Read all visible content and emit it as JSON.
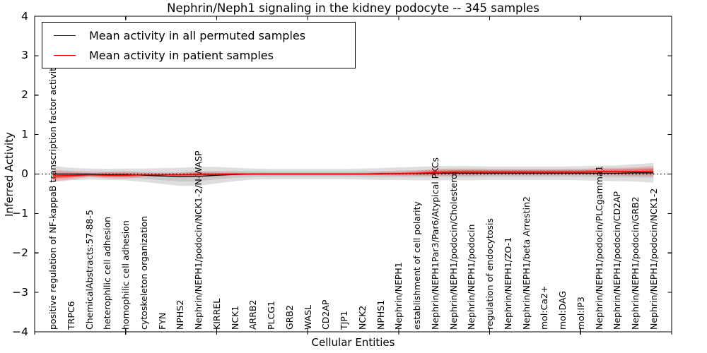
{
  "figure": {
    "title": "Nephrin/Neph1 signaling in the kidney podocyte -- 345 samples"
  },
  "axes": {
    "xlabel": "Cellular Entities",
    "ylabel": "Inferred Activity",
    "ytick_labels": [
      "4",
      "3",
      "2",
      "1",
      "0",
      "−1",
      "−2",
      "−3",
      "−4"
    ],
    "ylim": [
      -4,
      4
    ]
  },
  "legend": {
    "items": [
      {
        "label": "Mean activity in all permuted samples",
        "color": "#000000"
      },
      {
        "label": "Mean activity in patient samples",
        "color": "#ff0000"
      }
    ]
  },
  "chart_data": {
    "type": "line",
    "title": "Nephrin/Neph1 signaling in the kidney podocyte -- 345 samples",
    "xlabel": "Cellular Entities",
    "ylabel": "Inferred Activity",
    "ylim": [
      -4,
      4
    ],
    "yticks": [
      4,
      3,
      2,
      1,
      0,
      -1,
      -2,
      -3,
      -4
    ],
    "x_axis_numeric_tick_positions": [
      0,
      5,
      10,
      15,
      20,
      25,
      30,
      35
    ],
    "grid": false,
    "legend_position": "upper-left",
    "zero_reference_line": {
      "y": 0,
      "style": "dotted",
      "color": "#000000"
    },
    "categories": [
      "positive regulation of NF-kappaB transcription factor activity",
      "TRPC6",
      "ChemicalAbstracts:57-88-5",
      "heterophilic cell adhesion",
      "homophilic cell adhesion",
      "cytoskeleton organization",
      "FYN",
      "NPHS2",
      "Nephrin/NEPH1/podocin/NCK1-2/N-WASP",
      "KIRREL",
      "NCK1",
      "ARRB2",
      "PLCG1",
      "GRB2",
      "WASL",
      "CD2AP",
      "TJP1",
      "NCK2",
      "NPHS1",
      "Nephrin/NEPH1",
      "establishment of cell polarity",
      "Nephrin/NEPH1Par3/Par6/Atypical PKCs",
      "Nephrin/NEPH1/podocin/Cholesterol",
      "Nephrin/NEPH1/podocin",
      "regulation of endocytosis",
      "Nephrin/NEPH1/ZO-1",
      "Nephrin/NEPH1/beta Arrestin2",
      "mol:Ca2+",
      "mol:DAG",
      "mol:IP3",
      "Nephrin/NEPH1/podocin/PLCgamma1",
      "Nephrin/NEPH1/podocin/CD2AP",
      "Nephrin/NEPH1/podocin/GRB2",
      "Nephrin/NEPH1/podocin/NCK1-2"
    ],
    "series": [
      {
        "name": "Mean activity in all permuted samples",
        "color": "#000000",
        "band_outer_color": "rgba(0,0,0,0.13)",
        "band_inner_color": "rgba(0,0,0,0.09)",
        "values": [
          0,
          0,
          0,
          -0.01,
          -0.01,
          -0.03,
          -0.05,
          -0.07,
          -0.06,
          -0.03,
          -0.01,
          0,
          0,
          0,
          0,
          0,
          0,
          0,
          0,
          0.01,
          0.01,
          0.02,
          0.02,
          0.02,
          0.02,
          0.02,
          0.02,
          0.02,
          0.02,
          0.02,
          0.02,
          0.02,
          0.03,
          0.03
        ],
        "band_std": [
          0.2,
          0.16,
          0.14,
          0.14,
          0.15,
          0.17,
          0.2,
          0.23,
          0.24,
          0.21,
          0.17,
          0.14,
          0.13,
          0.13,
          0.13,
          0.13,
          0.13,
          0.14,
          0.15,
          0.16,
          0.17,
          0.18,
          0.18,
          0.18,
          0.17,
          0.17,
          0.17,
          0.17,
          0.17,
          0.18,
          0.19,
          0.2,
          0.22,
          0.25
        ]
      },
      {
        "name": "Mean activity in patient samples",
        "color": "#ff0000",
        "band_outer_color": "rgba(255,0,0,0.18)",
        "band_inner_color": "rgba(255,0,0,0.30)",
        "values": [
          -0.05,
          -0.04,
          -0.02,
          -0.03,
          -0.03,
          -0.02,
          -0.02,
          -0.02,
          -0.01,
          -0.01,
          0,
          0,
          0,
          0,
          0,
          0,
          0,
          0,
          0.01,
          0.01,
          0.02,
          0.04,
          0.05,
          0.05,
          0.05,
          0.05,
          0.05,
          0.05,
          0.05,
          0.05,
          0.06,
          0.06,
          0.06,
          0.07
        ],
        "band_std": [
          0.13,
          0.1,
          0.05,
          0.08,
          0.09,
          0.05,
          0.04,
          0.05,
          0.07,
          0.06,
          0.04,
          0.03,
          0.03,
          0.03,
          0.03,
          0.03,
          0.03,
          0.03,
          0.04,
          0.05,
          0.06,
          0.09,
          0.09,
          0.09,
          0.08,
          0.08,
          0.08,
          0.08,
          0.08,
          0.08,
          0.09,
          0.1,
          0.11,
          0.13
        ]
      }
    ]
  }
}
